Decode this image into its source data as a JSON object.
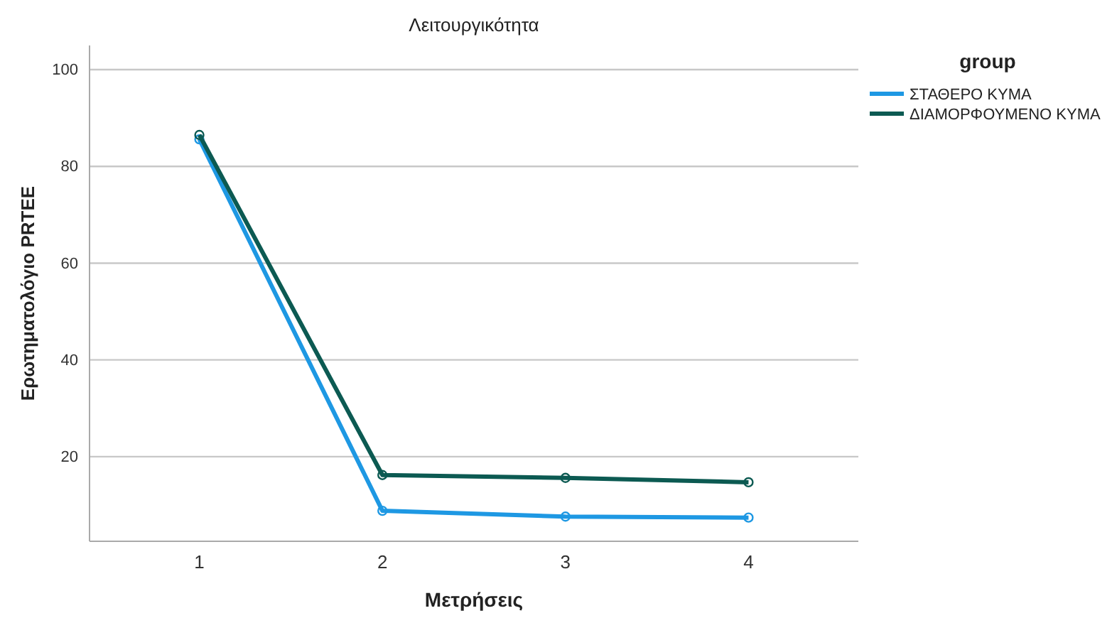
{
  "chart_data": {
    "type": "line",
    "title": "Λειτουργικότητα",
    "xlabel": "Μετρήσεις",
    "ylabel": "Ερωτηματολόγιο PRTEE",
    "legend_title": "group",
    "categories": [
      "1",
      "2",
      "3",
      "4"
    ],
    "series": [
      {
        "name": "ΣΤΑΘΕΡΟ ΚΥΜΑ",
        "color": "#1e98e3",
        "values": [
          85.6,
          8.8,
          7.6,
          7.4
        ]
      },
      {
        "name": "ΔΙΑΜΟΡΦΟΥΜΕΝΟ ΚΥΜΑ",
        "color": "#0c5a52",
        "values": [
          86.5,
          16.2,
          15.6,
          14.7
        ]
      }
    ],
    "ylim": [
      2.5,
      105
    ],
    "yticks": [
      20,
      40,
      60,
      80,
      100
    ],
    "grid": "y",
    "legend": "top right",
    "marker": "circle",
    "line_style": "solid"
  }
}
